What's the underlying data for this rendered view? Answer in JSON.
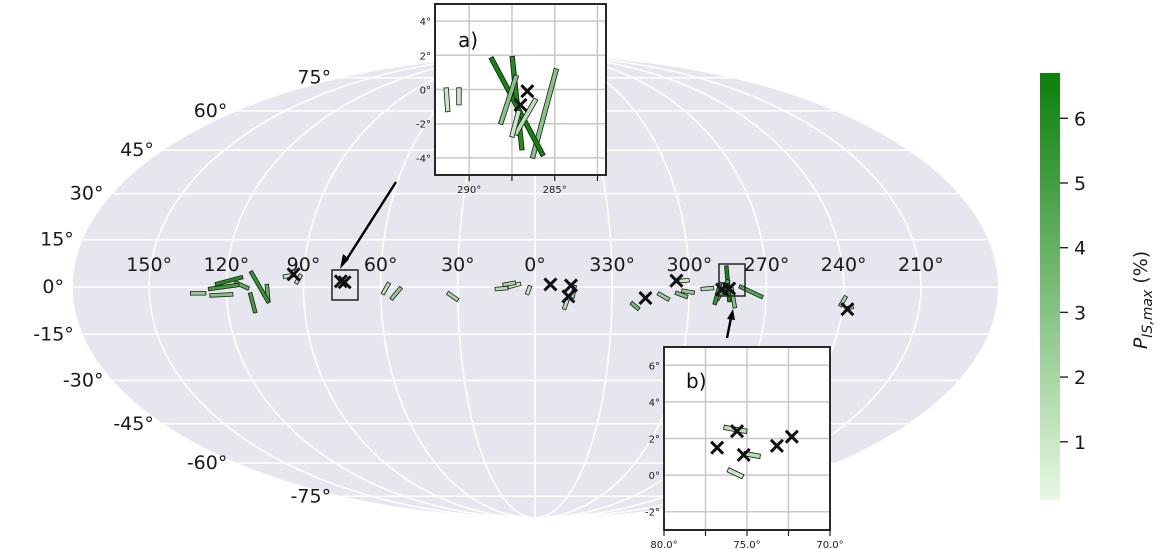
{
  "chart_data": {
    "type": "scatter",
    "projection": "mollweide",
    "background_color": "#e6e6ef",
    "grid": true,
    "longitude_ticks": [
      "210°",
      "240°",
      "270°",
      "300°",
      "330°",
      "0°",
      "30°",
      "60°",
      "90°",
      "120°",
      "150°"
    ],
    "latitude_ticks": [
      "75°",
      "60°",
      "45°",
      "30°",
      "15°",
      "0°",
      "-15°",
      "-30°",
      "-45°",
      "-60°",
      "-75°"
    ],
    "colorbar": {
      "label": "P_{IS,max} (%)",
      "ticks": [
        "1",
        "2",
        "3",
        "4",
        "5",
        "6"
      ],
      "range": [
        0.1,
        6.7
      ],
      "cmap": [
        "#e8f8e3",
        "#0a7f0a"
      ]
    },
    "stars": [
      {
        "l": 238.0,
        "b": -7.0
      },
      {
        "l": 284.5,
        "b": -0.5
      },
      {
        "l": 287.3,
        "b": -0.8
      },
      {
        "l": 305.0,
        "b": 2.0
      },
      {
        "l": 317.0,
        "b": -3.5
      },
      {
        "l": 346.0,
        "b": 0.5
      },
      {
        "l": 347.0,
        "b": -3.0
      },
      {
        "l": 354.0,
        "b": 0.8
      },
      {
        "l": 74.0,
        "b": 1.5
      },
      {
        "l": 75.5,
        "b": 1.8
      },
      {
        "l": 94.0,
        "b": 4.0
      }
    ],
    "vectors": [
      {
        "l": 237.0,
        "b": -6.5,
        "angle": 15,
        "length": 2.5,
        "p": 1.5
      },
      {
        "l": 240.0,
        "b": -4.5,
        "angle": 60,
        "length": 4.5,
        "p": 2.0
      },
      {
        "l": 276.0,
        "b": -1.5,
        "angle": -25,
        "length": 10.0,
        "p": 4.5
      },
      {
        "l": 285.0,
        "b": 1.0,
        "angle": 95,
        "length": 14.0,
        "p": 6.5
      },
      {
        "l": 287.0,
        "b": -1.0,
        "angle": 60,
        "length": 9.0,
        "p": 4.0
      },
      {
        "l": 283.0,
        "b": -3.0,
        "angle": 100,
        "length": 9.0,
        "p": 3.0
      },
      {
        "l": 289.0,
        "b": -2.0,
        "angle": 75,
        "length": 9.0,
        "p": 5.5
      },
      {
        "l": 293.0,
        "b": -0.5,
        "angle": 5,
        "length": 5.0,
        "p": 1.5
      },
      {
        "l": 300.5,
        "b": -1.5,
        "angle": -10,
        "length": 5.0,
        "p": 2.5
      },
      {
        "l": 302.0,
        "b": 2.0,
        "angle": 5,
        "length": 4.0,
        "p": 1.0
      },
      {
        "l": 303.0,
        "b": -2.5,
        "angle": -20,
        "length": 5.0,
        "p": 3.0
      },
      {
        "l": 310.0,
        "b": -3.0,
        "angle": -30,
        "length": 5.0,
        "p": 2.5
      },
      {
        "l": 321.0,
        "b": -6.0,
        "angle": -40,
        "length": 4.0,
        "p": 3.5
      },
      {
        "l": 345.0,
        "b": -1.5,
        "angle": 80,
        "length": 5.0,
        "p": 2.5
      },
      {
        "l": 348.0,
        "b": -5.5,
        "angle": 70,
        "length": 4.0,
        "p": 1.5
      },
      {
        "l": 2.5,
        "b": -1.0,
        "angle": 70,
        "length": 3.5,
        "p": 1.0
      },
      {
        "l": 8.0,
        "b": 0.5,
        "angle": 15,
        "length": 5.0,
        "p": 1.0
      },
      {
        "l": 10.0,
        "b": 1.0,
        "angle": 10,
        "length": 5.0,
        "p": 2.0
      },
      {
        "l": 13.0,
        "b": -0.5,
        "angle": 5,
        "length": 5.0,
        "p": 1.5
      },
      {
        "l": 32.0,
        "b": -3.0,
        "angle": -35,
        "length": 5.0,
        "p": 2.0
      },
      {
        "l": 54.0,
        "b": -2.0,
        "angle": 50,
        "length": 6.0,
        "p": 2.5
      },
      {
        "l": 58.0,
        "b": -0.5,
        "angle": 60,
        "length": 5.0,
        "p": 1.5
      },
      {
        "l": 92.0,
        "b": 2.5,
        "angle": 60,
        "length": 4.0,
        "p": 1.5
      },
      {
        "l": 96.0,
        "b": 3.5,
        "angle": 10,
        "length": 4.0,
        "p": 1.0
      },
      {
        "l": 104.0,
        "b": -2.0,
        "angle": 95,
        "length": 7.0,
        "p": 4.0
      },
      {
        "l": 107.0,
        "b": 0.0,
        "angle": -60,
        "length": 14.0,
        "p": 5.5
      },
      {
        "l": 110.0,
        "b": -5.0,
        "angle": -75,
        "length": 8.0,
        "p": 5.0
      },
      {
        "l": 114.0,
        "b": 0.5,
        "angle": -25,
        "length": 6.0,
        "p": 4.0
      },
      {
        "l": 119.0,
        "b": 2.0,
        "angle": 15,
        "length": 11.0,
        "p": 6.0
      },
      {
        "l": 121.0,
        "b": 0.0,
        "angle": 8,
        "length": 12.0,
        "p": 5.0
      },
      {
        "l": 122.0,
        "b": -2.5,
        "angle": 3,
        "length": 9.0,
        "p": 3.0
      },
      {
        "l": 131.0,
        "b": -2.0,
        "angle": 0,
        "length": 6.0,
        "p": 2.5
      }
    ],
    "insets": [
      {
        "label": "a)",
        "xlim": [
          282.0,
          292.0
        ],
        "ylim": [
          -5.0,
          5.0
        ],
        "xticks": [
          "285°",
          "290°"
        ],
        "yticks": [
          "4°",
          "2°",
          "0°",
          "-2°",
          "-4°"
        ],
        "stars": [
          {
            "l": 286.6,
            "b": -0.1
          },
          {
            "l": 287.0,
            "b": -0.9
          }
        ],
        "vectors": [
          {
            "l": 285.6,
            "b": -1.4,
            "angle": 75,
            "length": 5.4,
            "p": 3.0
          },
          {
            "l": 287.2,
            "b": -0.8,
            "angle": 96,
            "length": 5.5,
            "p": 6.0
          },
          {
            "l": 287.2,
            "b": -1.0,
            "angle": -62,
            "length": 6.5,
            "p": 6.5
          },
          {
            "l": 287.7,
            "b": -0.6,
            "angle": 72,
            "length": 3.0,
            "p": 3.0
          },
          {
            "l": 286.7,
            "b": -1.6,
            "angle": 60,
            "length": 2.4,
            "p": 1.5
          },
          {
            "l": 287.3,
            "b": -2.0,
            "angle": 75,
            "length": 1.6,
            "p": 1.0
          },
          {
            "l": 290.6,
            "b": -0.4,
            "angle": 90,
            "length": 1.0,
            "p": 1.0
          },
          {
            "l": 291.3,
            "b": -0.6,
            "angle": 94,
            "length": 1.4,
            "p": 1.0
          }
        ]
      },
      {
        "label": "b)",
        "xlim": [
          70.0,
          80.0
        ],
        "ylim": [
          -3.0,
          7.0
        ],
        "xticks": [
          "70.0°",
          "75.0°",
          "80.0°"
        ],
        "yticks": [
          "6°",
          "4°",
          "2°",
          "0°",
          "-2°"
        ],
        "stars": [
          {
            "l": 72.3,
            "b": 2.1
          },
          {
            "l": 73.2,
            "b": 1.6
          },
          {
            "l": 75.2,
            "b": 1.1
          },
          {
            "l": 75.6,
            "b": 2.4
          },
          {
            "l": 76.8,
            "b": 1.5
          }
        ],
        "vectors": [
          {
            "l": 74.7,
            "b": 1.1,
            "angle": -10,
            "length": 1.0,
            "p": 1.5
          },
          {
            "l": 75.7,
            "b": 2.5,
            "angle": -10,
            "length": 1.4,
            "p": 1.5
          },
          {
            "l": 75.7,
            "b": 0.1,
            "angle": -25,
            "length": 1.0,
            "p": 1.0
          }
        ]
      }
    ]
  }
}
